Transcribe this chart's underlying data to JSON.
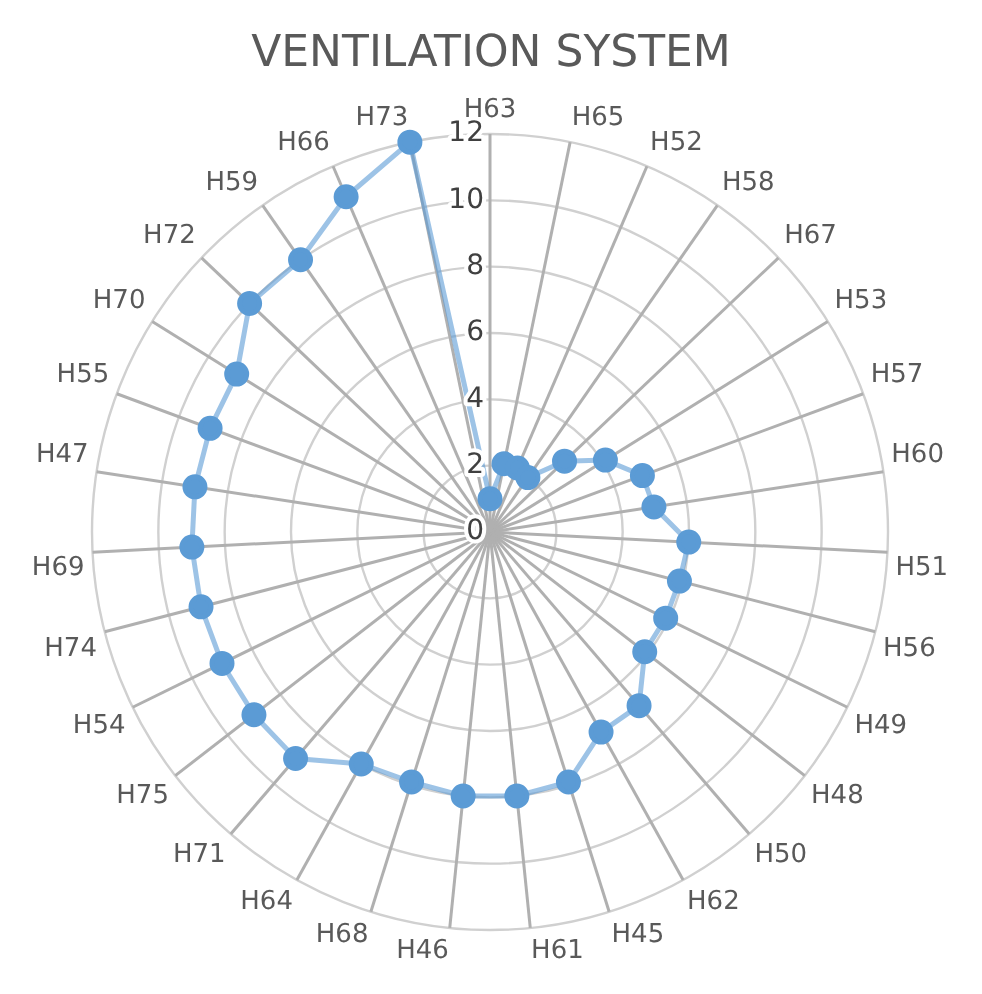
{
  "chart_data": {
    "type": "radar",
    "title": "VENTILATION SYSTEM",
    "categories": [
      "H63",
      "H65",
      "H52",
      "H58",
      "H67",
      "H53",
      "H57",
      "H60",
      "H51",
      "H56",
      "H49",
      "H48",
      "H50",
      "H62",
      "H45",
      "H61",
      "H46",
      "H68",
      "H64",
      "H71",
      "H75",
      "H54",
      "H74",
      "H69",
      "H47",
      "H55",
      "H70",
      "H72",
      "H59",
      "H66",
      "H73"
    ],
    "series": [
      {
        "color": "#5b9bd5",
        "values": [
          1,
          2.1,
          2.1,
          2,
          3.1,
          4.1,
          4.9,
          5,
          6,
          5.9,
          5.9,
          5.9,
          6.9,
          6.9,
          7.9,
          8,
          8,
          7.9,
          8,
          9,
          9,
          9,
          9,
          9,
          9,
          9,
          9,
          10,
          10,
          11,
          12
        ]
      }
    ],
    "ylim": [
      0,
      12
    ],
    "yticks": [
      0,
      2,
      4,
      6,
      8,
      10,
      12
    ],
    "grid": true,
    "legend": false,
    "marker": "circle",
    "line_style": "solid"
  }
}
